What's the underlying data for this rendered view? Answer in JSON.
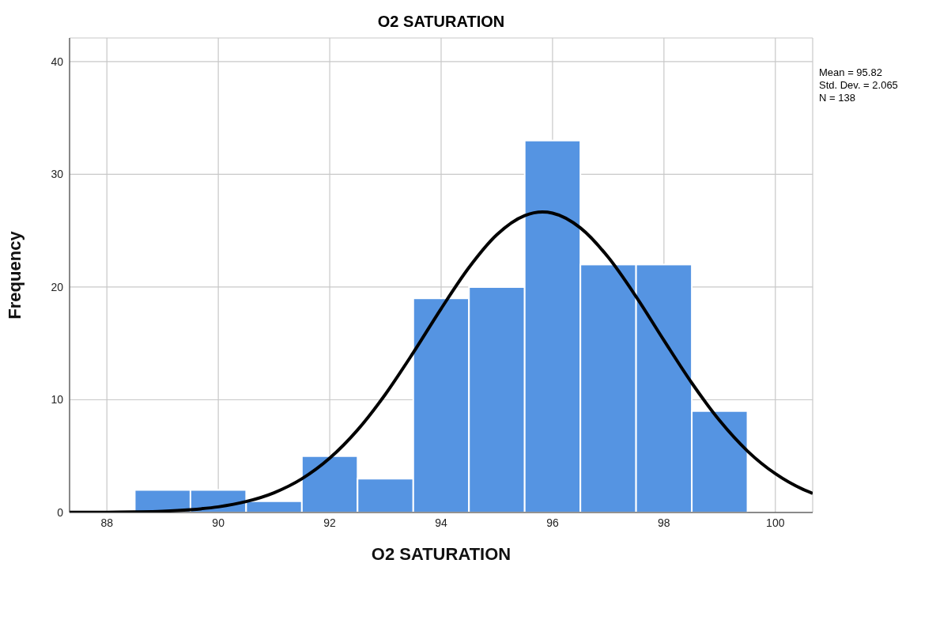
{
  "chart_data": {
    "type": "histogram",
    "title": "O2 SATURATION",
    "xlabel": "O2 SATURATION",
    "ylabel": "Frequency",
    "annotations": [
      "Mean = 95.82",
      "Std. Dev. = 2.065",
      "N = 138"
    ],
    "xlim": [
      87.33,
      100.67
    ],
    "ylim": [
      0,
      42.1
    ],
    "xticks": [
      88,
      90,
      92,
      94,
      96,
      98,
      100
    ],
    "yticks": [
      0,
      10,
      20,
      30,
      40
    ],
    "grid": true,
    "series": [
      {
        "color": "#5594e2",
        "bins": [
          88.5,
          89.5,
          90.5,
          91.5,
          92.5,
          93.5,
          94.5,
          95.5,
          96.5,
          97.5,
          98.5,
          99.5
        ],
        "values": [
          2,
          2,
          1,
          5,
          3,
          19,
          20,
          33,
          22,
          22,
          9
        ]
      },
      {
        "type": "line",
        "color": "#000000",
        "x": [
          87.33,
          87.5,
          88,
          88.5,
          89,
          89.5,
          90,
          90.5,
          91,
          91.5,
          92,
          92.5,
          93,
          93.5,
          94,
          94.5,
          95,
          95.5,
          95.82,
          96,
          96.5,
          97,
          97.5,
          98,
          98.5,
          99,
          99.5,
          100,
          100.5,
          100.67
        ],
        "values": [
          0.01,
          0.01,
          0.02,
          0.05,
          0.11,
          0.25,
          0.5,
          0.97,
          1.75,
          2.99,
          4.82,
          7.32,
          10.49,
          14.18,
          18.08,
          21.73,
          24.64,
          26.34,
          26.66,
          26.56,
          25.25,
          22.64,
          19.15,
          15.27,
          11.49,
          8.15,
          5.45,
          3.44,
          2.04,
          1.69
        ]
      }
    ]
  }
}
